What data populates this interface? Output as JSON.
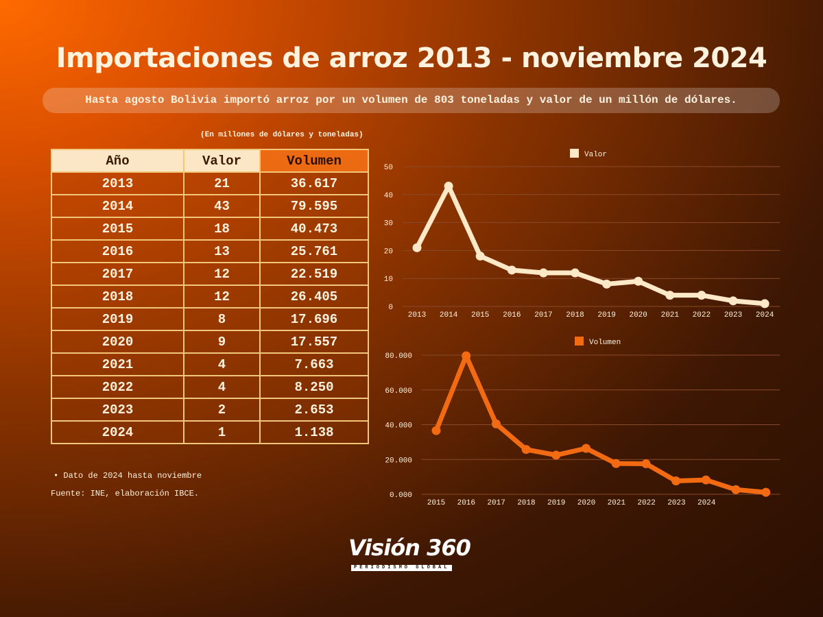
{
  "title": "Importaciones de arroz 2013 - noviembre 2024",
  "subtitle": "Hasta agosto Bolivia importó arroz por un volumen de 803 toneladas y valor de un millón de dólares.",
  "units_note": "(En millones de dólares y toneladas)",
  "table": {
    "headers": [
      "Año",
      "Valor",
      "Volumen"
    ],
    "rows": [
      [
        "2013",
        "21",
        "36.617"
      ],
      [
        "2014",
        "43",
        "79.595"
      ],
      [
        "2015",
        "18",
        "40.473"
      ],
      [
        "2016",
        "13",
        "25.761"
      ],
      [
        "2017",
        "12",
        "22.519"
      ],
      [
        "2018",
        "12",
        "26.405"
      ],
      [
        "2019",
        "8",
        "17.696"
      ],
      [
        "2020",
        "9",
        "17.557"
      ],
      [
        "2021",
        "4",
        "7.663"
      ],
      [
        "2022",
        "4",
        "8.250"
      ],
      [
        "2023",
        "2",
        "2.653"
      ],
      [
        "2024",
        "1",
        "1.138"
      ]
    ]
  },
  "footnote": "Dato de 2024 hasta noviembre",
  "source": "Fuente: INE, elaboración IBCE.",
  "logo": {
    "main": "Visión 360",
    "sub": "PERIODISMO GLOBAL"
  },
  "colors": {
    "valor": "#fde8c8",
    "volumen": "#f26a12",
    "grid": "#8a4a2a",
    "text": "#fff3e0"
  },
  "chart_data": [
    {
      "type": "line",
      "legend": "Valor",
      "legend_position": "top-center",
      "categories": [
        "2013",
        "2014",
        "2015",
        "2016",
        "2017",
        "2018",
        "2019",
        "2020",
        "2021",
        "2022",
        "2023",
        "2024"
      ],
      "values": [
        21,
        43,
        18,
        13,
        12,
        12,
        8,
        9,
        4,
        4,
        2,
        1
      ],
      "ylim": [
        0,
        50
      ],
      "yticks": [
        "0",
        "10",
        "20",
        "30",
        "40",
        "50"
      ],
      "ytick_values": [
        0,
        10,
        20,
        30,
        40,
        50
      ],
      "grid": true
    },
    {
      "type": "line",
      "legend": "Volumen",
      "legend_position": "top-center",
      "xtick_labels": [
        "2015",
        "2016",
        "2017",
        "2018",
        "2019",
        "2020",
        "2021",
        "2022",
        "2023",
        "2024"
      ],
      "values": [
        36617,
        79595,
        40473,
        25761,
        22519,
        26405,
        17696,
        17557,
        7663,
        8250,
        2653,
        1138
      ],
      "ylim": [
        0,
        80000
      ],
      "yticks": [
        "0.000",
        "20.000",
        "40.000",
        "60.000",
        "80.000"
      ],
      "ytick_values": [
        0,
        20000,
        40000,
        60000,
        80000
      ],
      "grid": true
    }
  ]
}
